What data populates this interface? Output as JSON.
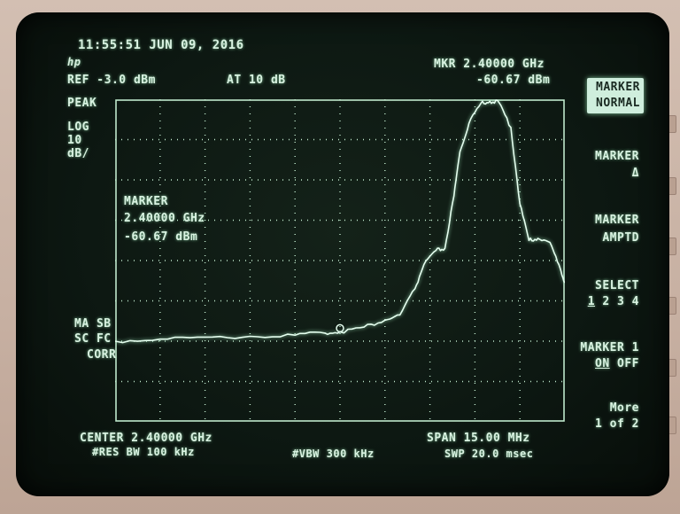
{
  "header": {
    "timestamp": "11:55:51 JUN 09, 2016",
    "logo_glyph": "hp",
    "ref_level": "REF -3.0 dBm",
    "attenuation": "AT 10 dB",
    "marker_readout_freq": "MKR 2.40000 GHz",
    "marker_readout_amp": "-60.67 dBm"
  },
  "left_labels": {
    "detector": "PEAK",
    "scale": "LOG",
    "scale_value": "10",
    "scale_unit": "dB/",
    "corrections_1": "MA SB",
    "corrections_2": "SC FC",
    "corrections_3": "CORR"
  },
  "marker_annotation": {
    "title": "MARKER",
    "frequency": "2.40000 GHz",
    "amplitude": "-60.67 dBm"
  },
  "softkeys": {
    "marker_normal_line1": "MARKER",
    "marker_normal_line2": "NORMAL",
    "marker_delta_line1": "MARKER",
    "marker_delta_line2": "Δ",
    "marker_amptd_line1": "MARKER",
    "marker_amptd_line2": "AMPTD",
    "select_line1": "SELECT",
    "select_active": "1",
    "select_others": "2 3 4",
    "marker1_line1": "MARKER 1",
    "marker1_on": "ON",
    "marker1_off": "OFF",
    "more_line1": "More",
    "more_line2": "1 of 2"
  },
  "footer": {
    "center": "CENTER 2.40000 GHz",
    "rbw": "#RES BW 100 kHz",
    "vbw": "#VBW 300 kHz",
    "span": "SPAN 15.00 MHz",
    "sweep": "SWP 20.0 msec"
  },
  "colors": {
    "trace": "#e6fff0",
    "graticule": "#bfe8cc",
    "screen_bg": "#0d1812",
    "bezel": "#c9b3a6"
  },
  "chart_data": {
    "type": "line",
    "x_start_ghz": 2.3925,
    "x_stop_ghz": 2.4075,
    "x_divisions": 10,
    "y_top_dbm": -3.0,
    "y_scale_db_per_div": 10,
    "y_divisions": 8,
    "marker": {
      "x": 2.4,
      "y": -60.67
    },
    "series": [
      {
        "x": [
          2.3925,
          2.394,
          2.3955,
          2.397,
          2.3985,
          2.3995,
          2.4,
          2.4008,
          2.4015,
          2.402,
          2.4025,
          2.4028,
          2.4032,
          2.4035,
          2.4038,
          2.404,
          2.4043,
          2.4047,
          2.405,
          2.4053,
          2.4057,
          2.406,
          2.4063,
          2.4066,
          2.407,
          2.4073,
          2.4075
        ],
        "y": [
          -63.0,
          -62.5,
          -62.0,
          -61.8,
          -61.5,
          -61.0,
          -60.7,
          -59.5,
          -57.8,
          -56.5,
          -50.0,
          -44.0,
          -40.5,
          -40.0,
          -27.0,
          -16.0,
          -9.0,
          -4.0,
          -3.5,
          -3.8,
          -10.0,
          -29.0,
          -38.0,
          -37.5,
          -38.5,
          -44.0,
          -48.5
        ]
      }
    ]
  }
}
